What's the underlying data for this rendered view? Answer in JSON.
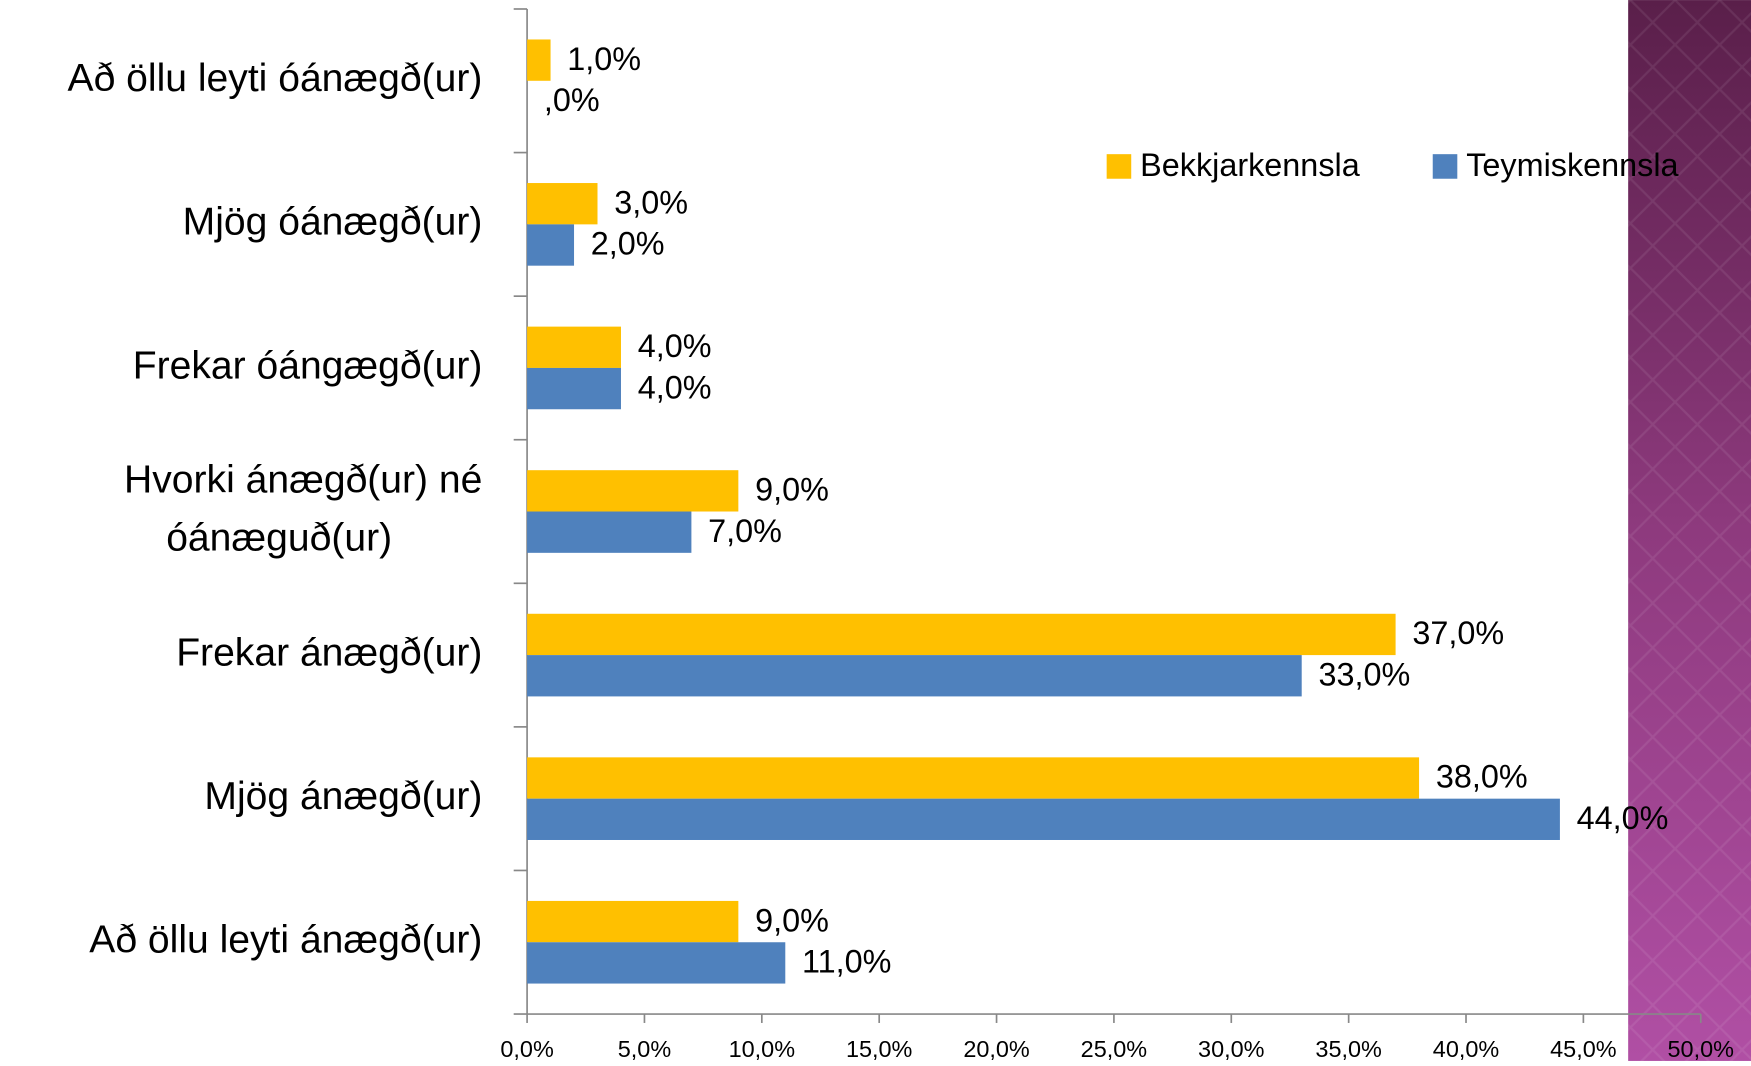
{
  "chart_data": {
    "type": "bar",
    "orientation": "horizontal",
    "categories": [
      "Að öllu leyti óánægð(ur)",
      "Mjög óánægð(ur)",
      "Frekar óángægð(ur)",
      "Hvorki ánægð(ur) né óánæguð(ur)",
      "Frekar ánægð(ur)",
      "Mjög ánægð(ur)",
      "Að öllu leyti ánægð(ur)"
    ],
    "series": [
      {
        "name": "Bekkjarkennsla",
        "color": "#FFC000",
        "values": [
          1,
          3,
          4,
          9,
          37,
          38,
          9
        ],
        "value_labels": [
          "1,0%",
          "3,0%",
          "4,0%",
          "9,0%",
          "37,0%",
          "38,0%",
          "9,0%"
        ]
      },
      {
        "name": "Teymiskennsla",
        "color": "#4F81BD",
        "values": [
          0,
          2,
          4,
          7,
          33,
          44,
          11
        ],
        "value_labels": [
          ",0%",
          "2,0%",
          "4,0%",
          "7,0%",
          "33,0%",
          "44,0%",
          "11,0%"
        ]
      }
    ],
    "xlim": [
      0,
      50
    ],
    "xticks": [
      {
        "value": 0,
        "label": "0,0%"
      },
      {
        "value": 5,
        "label": "5,0%"
      },
      {
        "value": 10,
        "label": "10,0%"
      },
      {
        "value": 15,
        "label": "15,0%"
      },
      {
        "value": 20,
        "label": "20,0%"
      },
      {
        "value": 25,
        "label": "25,0%"
      },
      {
        "value": 30,
        "label": "30,0%"
      },
      {
        "value": 35,
        "label": "35,0%"
      },
      {
        "value": 40,
        "label": "40,0%"
      },
      {
        "value": 45,
        "label": "45,0%"
      },
      {
        "value": 50,
        "label": "50,0%"
      }
    ],
    "legend": "top-right"
  }
}
